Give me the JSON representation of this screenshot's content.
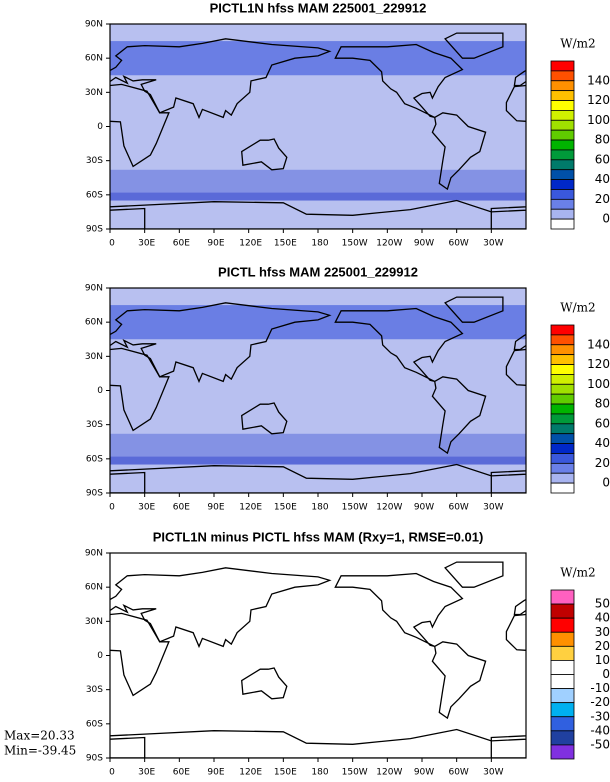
{
  "panels": [
    {
      "title": "PICTL1N hfss MAM 225001_229912",
      "units": "W/m2",
      "lat_labels": [
        "90N",
        "60N",
        "30N",
        "0",
        "30S",
        "60S",
        "90S"
      ],
      "lon_labels": [
        "0",
        "30E",
        "60E",
        "90E",
        "120E",
        "150E",
        "180",
        "150W",
        "120W",
        "90W",
        "60W",
        "30W"
      ],
      "colorbar": {
        "labels": [
          "140",
          "120",
          "100",
          "80",
          "60",
          "40",
          "20",
          "0"
        ],
        "colors": [
          "#ff0000",
          "#ff5000",
          "#ff9000",
          "#ffc000",
          "#ffff00",
          "#d0f000",
          "#a0e000",
          "#60cc00",
          "#00b400",
          "#009a3a",
          "#007a6a",
          "#0050a8",
          "#0028c8",
          "#3a58dc",
          "#6a80e8",
          "#a8b4f0",
          "#ffffff"
        ]
      }
    },
    {
      "title": "PICTL hfss MAM 225001_229912",
      "units": "W/m2",
      "lat_labels": [
        "90N",
        "60N",
        "30N",
        "0",
        "30S",
        "60S",
        "90S"
      ],
      "lon_labels": [
        "0",
        "30E",
        "60E",
        "90E",
        "120E",
        "150E",
        "180",
        "150W",
        "120W",
        "90W",
        "60W",
        "30W"
      ],
      "colorbar": {
        "labels": [
          "140",
          "120",
          "100",
          "80",
          "60",
          "40",
          "20",
          "0"
        ],
        "colors": [
          "#ff0000",
          "#ff5000",
          "#ff9000",
          "#ffc000",
          "#ffff00",
          "#d0f000",
          "#a0e000",
          "#60cc00",
          "#00b400",
          "#009a3a",
          "#007a6a",
          "#0050a8",
          "#0028c8",
          "#3a58dc",
          "#6a80e8",
          "#a8b4f0",
          "#ffffff"
        ]
      }
    },
    {
      "title": "PICTL1N minus PICTL hfss MAM (Rxy=1, RMSE=0.01)",
      "units": "W/m2",
      "lat_labels": [
        "90N",
        "60N",
        "30N",
        "0",
        "30S",
        "60S",
        "90S"
      ],
      "lon_labels": [
        "0",
        "30E",
        "60E",
        "90E",
        "120E",
        "150E",
        "180",
        "150W",
        "120W",
        "90W",
        "60W",
        "30W"
      ],
      "colorbar": {
        "labels": [
          "50",
          "40",
          "30",
          "20",
          "10",
          "0",
          "-10",
          "-20",
          "-30",
          "-40",
          "-50"
        ],
        "colors": [
          "#ff60c0",
          "#c00000",
          "#ff0000",
          "#ff9000",
          "#ffd040",
          "#ffffff",
          "#ffffff",
          "#a0d0ff",
          "#00b0f0",
          "#3060e0",
          "#2040a0",
          "#8030e0"
        ]
      }
    }
  ],
  "stats": {
    "max": "Max=20.33",
    "min": "Min=-39.45"
  }
}
